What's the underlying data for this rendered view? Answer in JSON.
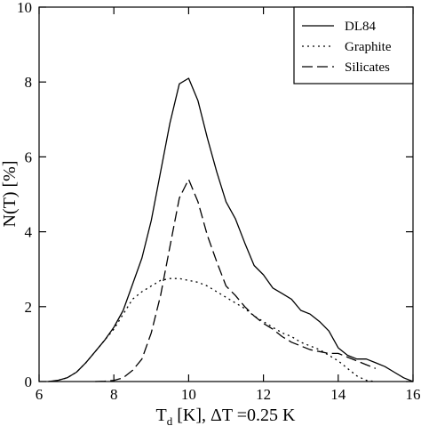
{
  "chart_data": {
    "type": "line",
    "xlabel": {
      "main": "T",
      "sub": "d",
      "rest": " [K], ΔT =0.25 K"
    },
    "ylabel": "N(T) [%]",
    "xlim": [
      6,
      16
    ],
    "ylim": [
      0,
      10
    ],
    "xticks": [
      6,
      8,
      10,
      12,
      14,
      16
    ],
    "yticks": [
      0,
      2,
      4,
      6,
      8,
      10
    ],
    "xtick_labels": [
      "6",
      "8",
      "10",
      "12",
      "14",
      "16"
    ],
    "ytick_labels": [
      "0",
      "2",
      "4",
      "6",
      "8",
      "10"
    ],
    "grid": false,
    "legend_position": "top-right",
    "series": [
      {
        "name": "DL84",
        "dash": "solid",
        "points": [
          [
            6.25,
            0
          ],
          [
            6.5,
            0.03
          ],
          [
            6.75,
            0.1
          ],
          [
            7.0,
            0.25
          ],
          [
            7.25,
            0.5
          ],
          [
            7.5,
            0.8
          ],
          [
            7.75,
            1.1
          ],
          [
            8.0,
            1.45
          ],
          [
            8.25,
            1.9
          ],
          [
            8.5,
            2.6
          ],
          [
            8.75,
            3.3
          ],
          [
            9.0,
            4.3
          ],
          [
            9.25,
            5.6
          ],
          [
            9.5,
            6.9
          ],
          [
            9.75,
            7.95
          ],
          [
            10.0,
            8.1
          ],
          [
            10.25,
            7.5
          ],
          [
            10.5,
            6.5
          ],
          [
            10.75,
            5.6
          ],
          [
            11.0,
            4.8
          ],
          [
            11.25,
            4.35
          ],
          [
            11.5,
            3.7
          ],
          [
            11.75,
            3.1
          ],
          [
            12.0,
            2.85
          ],
          [
            12.25,
            2.5
          ],
          [
            12.5,
            2.35
          ],
          [
            12.75,
            2.2
          ],
          [
            13.0,
            1.9
          ],
          [
            13.25,
            1.8
          ],
          [
            13.5,
            1.6
          ],
          [
            13.75,
            1.35
          ],
          [
            14.0,
            0.9
          ],
          [
            14.25,
            0.7
          ],
          [
            14.5,
            0.6
          ],
          [
            14.75,
            0.6
          ],
          [
            15.0,
            0.5
          ],
          [
            15.25,
            0.4
          ],
          [
            15.5,
            0.25
          ],
          [
            15.75,
            0.1
          ],
          [
            16.0,
            0
          ]
        ]
      },
      {
        "name": "Graphite",
        "dash": "dotted",
        "points": [
          [
            6.25,
            0
          ],
          [
            6.5,
            0.03
          ],
          [
            6.75,
            0.1
          ],
          [
            7.0,
            0.25
          ],
          [
            7.25,
            0.5
          ],
          [
            7.5,
            0.8
          ],
          [
            7.75,
            1.1
          ],
          [
            8.0,
            1.4
          ],
          [
            8.25,
            1.8
          ],
          [
            8.5,
            2.2
          ],
          [
            8.75,
            2.4
          ],
          [
            9.0,
            2.55
          ],
          [
            9.25,
            2.7
          ],
          [
            9.5,
            2.75
          ],
          [
            9.75,
            2.75
          ],
          [
            10.0,
            2.7
          ],
          [
            10.25,
            2.65
          ],
          [
            10.5,
            2.55
          ],
          [
            10.75,
            2.4
          ],
          [
            11.0,
            2.25
          ],
          [
            11.25,
            2.1
          ],
          [
            11.5,
            1.95
          ],
          [
            11.75,
            1.75
          ],
          [
            12.0,
            1.6
          ],
          [
            12.25,
            1.45
          ],
          [
            12.5,
            1.3
          ],
          [
            12.75,
            1.2
          ],
          [
            13.0,
            1.05
          ],
          [
            13.25,
            0.95
          ],
          [
            13.5,
            0.85
          ],
          [
            13.75,
            0.7
          ],
          [
            14.0,
            0.55
          ],
          [
            14.25,
            0.35
          ],
          [
            14.5,
            0.15
          ],
          [
            14.75,
            0.03
          ],
          [
            15.0,
            0
          ]
        ]
      },
      {
        "name": "Silicates",
        "dash": "dashed",
        "points": [
          [
            7.5,
            0
          ],
          [
            7.75,
            0.01
          ],
          [
            8.0,
            0.03
          ],
          [
            8.25,
            0.1
          ],
          [
            8.5,
            0.3
          ],
          [
            8.75,
            0.6
          ],
          [
            9.0,
            1.3
          ],
          [
            9.25,
            2.3
          ],
          [
            9.5,
            3.6
          ],
          [
            9.75,
            4.9
          ],
          [
            10.0,
            5.4
          ],
          [
            10.25,
            4.8
          ],
          [
            10.5,
            3.9
          ],
          [
            10.75,
            3.2
          ],
          [
            11.0,
            2.55
          ],
          [
            11.25,
            2.3
          ],
          [
            11.5,
            2.0
          ],
          [
            11.75,
            1.75
          ],
          [
            12.0,
            1.55
          ],
          [
            12.25,
            1.4
          ],
          [
            12.5,
            1.2
          ],
          [
            12.75,
            1.05
          ],
          [
            13.0,
            0.95
          ],
          [
            13.25,
            0.85
          ],
          [
            13.5,
            0.8
          ],
          [
            13.75,
            0.75
          ],
          [
            14.0,
            0.75
          ],
          [
            14.25,
            0.65
          ],
          [
            14.5,
            0.55
          ],
          [
            14.75,
            0.45
          ],
          [
            15.0,
            0.35
          ]
        ]
      }
    ]
  }
}
